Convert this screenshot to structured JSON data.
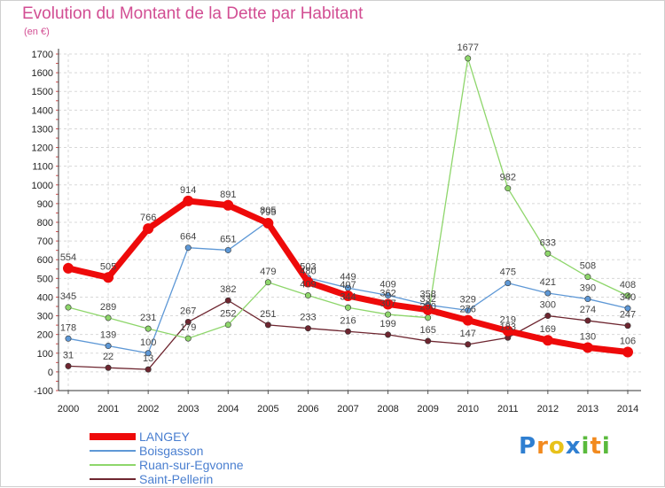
{
  "title": "Evolution du Montant de la Dette par Habitant",
  "subtitle": "(en €)",
  "logo": {
    "letters": [
      "P",
      "r",
      "o",
      "x",
      "i",
      "t",
      "i"
    ],
    "colors": [
      "#2f7fd1",
      "#f28a1e",
      "#e8c21a",
      "#2f7fd1",
      "#5aba3c",
      "#f28a1e",
      "#5aba3c"
    ]
  },
  "chart_data": {
    "type": "line",
    "title": "Evolution du Montant de la Dette par Habitant",
    "ylabel": "(en €)",
    "x": [
      "2000",
      "2001",
      "2002",
      "2003",
      "2004",
      "2005",
      "2006",
      "2007",
      "2008",
      "2009",
      "2010",
      "2011",
      "2012",
      "2013",
      "2014"
    ],
    "ylim": [
      -100,
      1700
    ],
    "yticks": [
      "-100",
      "0",
      "100",
      "200",
      "300",
      "400",
      "500",
      "600",
      "700",
      "800",
      "900",
      "1000",
      "1100",
      "1200",
      "1300",
      "1400",
      "1500",
      "1600",
      "1700"
    ],
    "grid": true,
    "legend": "bottom-left",
    "series": [
      {
        "name": "Saint-Pellerin",
        "color": "#6e2630",
        "width": 1.3,
        "marker": 3.2,
        "values": [
          31,
          22,
          13,
          267,
          382,
          251,
          233,
          216,
          199,
          165,
          147,
          183,
          300,
          274,
          247
        ],
        "labels": [
          "31",
          "22",
          "13",
          "267",
          "382",
          "251",
          "233",
          "216",
          "199",
          "165",
          "147",
          "183",
          "300",
          "274",
          "247"
        ]
      },
      {
        "name": "Ruan-sur-Egvonne",
        "color": "#8ed66b",
        "width": 1.3,
        "marker": 3.2,
        "values": [
          345,
          289,
          231,
          179,
          252,
          479,
          409,
          344,
          307,
          290,
          1677,
          982,
          633,
          508,
          408
        ],
        "labels": [
          "345",
          "289",
          "231",
          "179",
          "252",
          "479",
          "409",
          "344",
          "307",
          "290",
          "1677",
          "982",
          "633",
          "508",
          "408"
        ]
      },
      {
        "name": "Boisgasson",
        "color": "#5e98d6",
        "width": 1.3,
        "marker": 3.2,
        "values": [
          178,
          139,
          100,
          664,
          651,
          805,
          503,
          449,
          409,
          358,
          329,
          475,
          421,
          390,
          340
        ],
        "labels": [
          "178",
          "139",
          "100",
          "664",
          "651",
          "805",
          "503",
          "449",
          "409",
          "358",
          "329",
          "475",
          "421",
          "390",
          "340"
        ]
      },
      {
        "name": "LANGEY",
        "color": "#ee0a0a",
        "width": 7,
        "marker": 6,
        "values": [
          554,
          505,
          766,
          914,
          891,
          795,
          480,
          407,
          362,
          332,
          276,
          219,
          169,
          130,
          106
        ],
        "labels": [
          "554",
          "505",
          "766",
          "914",
          "891",
          "795",
          "480",
          "407",
          "362",
          "332",
          "276",
          "219",
          "169",
          "130",
          "106"
        ]
      }
    ],
    "legend_order": [
      "LANGEY",
      "Boisgasson",
      "Ruan-sur-Egvonne",
      "Saint-Pellerin"
    ]
  }
}
